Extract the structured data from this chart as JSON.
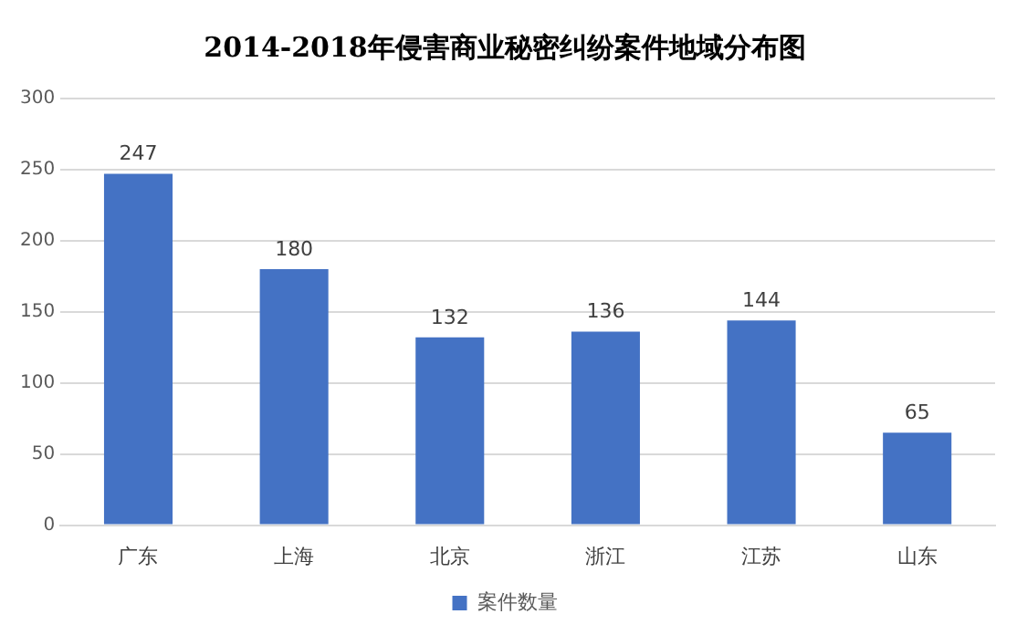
{
  "chart_data": {
    "type": "bar",
    "title": "2014-2018年侵害商业秘密纠纷案件地域分布图",
    "categories": [
      "广东",
      "上海",
      "北京",
      "浙江",
      "江苏",
      "山东"
    ],
    "series": [
      {
        "name": "案件数量",
        "color": "#4472c4",
        "values": [
          247,
          180,
          132,
          136,
          144,
          65
        ]
      }
    ],
    "ylim": [
      0,
      300
    ],
    "yticks": [
      0,
      50,
      100,
      150,
      200,
      250,
      300
    ],
    "grid": "y",
    "legend": "bottom",
    "data_labels": true
  }
}
